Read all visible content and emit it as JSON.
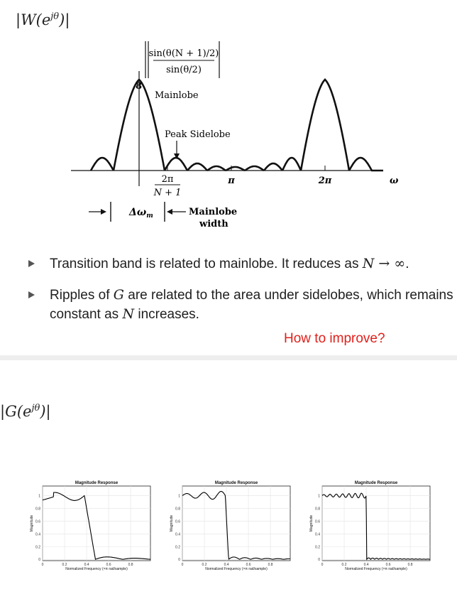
{
  "slide1": {
    "title": "|W(e",
    "title_sup": "jθ",
    "title_close": ")|",
    "figure": {
      "peak_value": "8",
      "formula_num": "sin(θ(N + 1)/2)",
      "formula_den": "sin(θ/2)",
      "mainlobe_label": "Mainlobe",
      "peak_sidelobe_label": "Peak Sidelobe",
      "tick_2pi_over_num": "2π",
      "tick_2pi_over_den": "N + 1",
      "tick_pi": "π",
      "tick_2pi": "2π",
      "omega": "ω",
      "delta_omega": "Δω",
      "delta_sub": "m",
      "mainlobe_width_1": "Mainlobe",
      "mainlobe_width_2": "width"
    },
    "bullets": [
      {
        "pre": "Transition band is related to mainlobe. It reduces as ",
        "math": "N → ∞",
        "post": "."
      },
      {
        "pre": "Ripples of ",
        "math": "G",
        "mid": " are related to the area under sidelobes, which remains constant as ",
        "math2": "N",
        "post": " increases."
      }
    ],
    "question": "How to improve?",
    "question_color": "#e0201b"
  },
  "slide2": {
    "title": "|G(e",
    "title_sup": "jθ",
    "title_close": ")|",
    "plots": [
      {
        "title": "Magnitude Response",
        "ylabel": "Magnitude",
        "xlabel": "Normalized Frequency (×π rad/sample)"
      },
      {
        "title": "Magnitude Response",
        "ylabel": "Magnitude",
        "xlabel": "Normalized Frequency (×π rad/sample)"
      },
      {
        "title": "Magnitude Response",
        "ylabel": "Magnitude",
        "xlabel": "Normalized Frequency (×π rad/sample)"
      }
    ],
    "yticks": [
      "0",
      "0.2",
      "0.4",
      "0.6",
      "0.8",
      "1"
    ],
    "xticks": [
      "0",
      "0.2",
      "0.4",
      "0.6",
      "0.8"
    ]
  }
}
